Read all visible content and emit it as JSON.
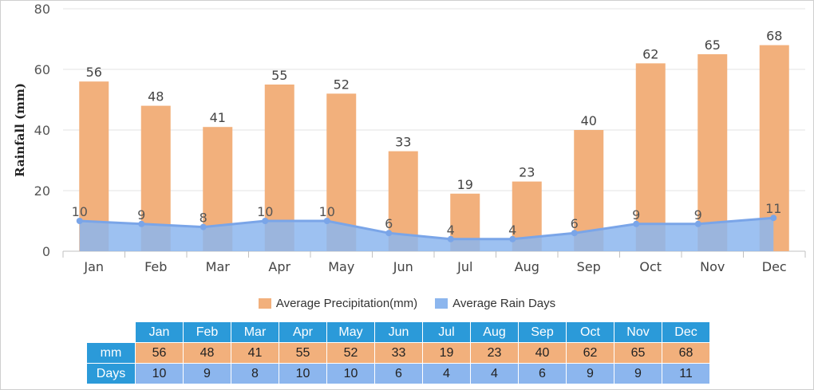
{
  "chart_data": {
    "type": "bar+area",
    "categories": [
      "Jan",
      "Feb",
      "Mar",
      "Apr",
      "May",
      "Jun",
      "Jul",
      "Aug",
      "Sep",
      "Oct",
      "Nov",
      "Dec"
    ],
    "series": [
      {
        "name": "Average Precipitation(mm)",
        "type": "bar",
        "values": [
          56,
          48,
          41,
          55,
          52,
          33,
          19,
          23,
          40,
          62,
          65,
          68
        ],
        "color": "#f2b07c"
      },
      {
        "name": "Average Rain Days",
        "type": "area",
        "values": [
          10,
          9,
          8,
          10,
          10,
          6,
          4,
          4,
          6,
          9,
          9,
          11
        ],
        "color": "#8cb6ee"
      }
    ],
    "ylabel": "Rainfall (mm)",
    "ylim": [
      0,
      80
    ],
    "yticks": [
      0,
      20,
      40,
      60,
      80
    ],
    "grid": true,
    "legend_position": "bottom"
  },
  "table": {
    "months": [
      "Jan",
      "Feb",
      "Mar",
      "Apr",
      "May",
      "Jun",
      "Jul",
      "Aug",
      "Sep",
      "Oct",
      "Nov",
      "Dec"
    ],
    "mm_label": "mm",
    "days_label": "Days",
    "mm": [
      56,
      48,
      41,
      55,
      52,
      33,
      19,
      23,
      40,
      62,
      65,
      68
    ],
    "days": [
      10,
      9,
      8,
      10,
      10,
      6,
      4,
      4,
      6,
      9,
      9,
      11
    ]
  },
  "colors": {
    "bar": "#f2b07c",
    "area_fill": "#8cb6ee",
    "line": "#7aa5e8",
    "table_header": "#2b9ad9"
  }
}
